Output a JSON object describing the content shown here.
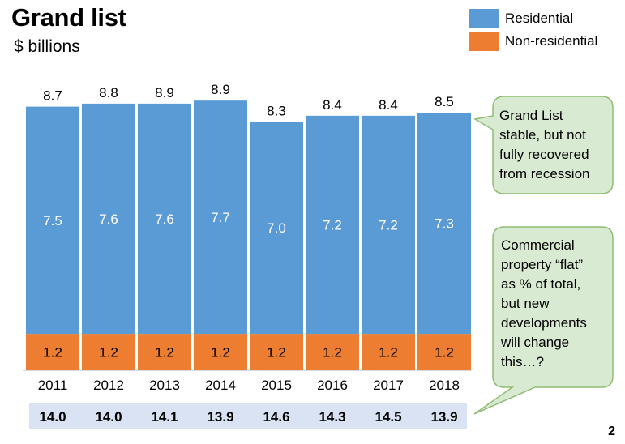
{
  "title": "Grand list",
  "subtitle": "$ billions",
  "page_number": "2",
  "colors": {
    "residential": "#5b9bd5",
    "non_residential": "#ed7d31",
    "callout_fill": "#d9ead3",
    "callout_border": "#8fbc72",
    "total_band": "#dae3f3"
  },
  "legend": [
    {
      "label": "Residential",
      "color": "#5b9bd5"
    },
    {
      "label": "Non-residential",
      "color": "#ed7d31"
    }
  ],
  "callouts": [
    {
      "lines": [
        "Grand List",
        "stable, but not",
        "fully recovered",
        "from recession"
      ]
    },
    {
      "lines": [
        "Commercial",
        "property “flat”",
        "as % of total,",
        "but new",
        "developments",
        "will change",
        "this…?"
      ]
    }
  ],
  "chart_data": {
    "type": "bar",
    "stacked": true,
    "categories": [
      "2011",
      "2012",
      "2013",
      "2014",
      "2015",
      "2016",
      "2017",
      "2018"
    ],
    "series": [
      {
        "name": "Non-residential",
        "values": [
          1.2,
          1.2,
          1.2,
          1.2,
          1.2,
          1.2,
          1.2,
          1.2
        ],
        "labels": [
          "1.2",
          "1.2",
          "1.2",
          "1.2",
          "1.2",
          "1.2",
          "1.2",
          "1.2"
        ]
      },
      {
        "name": "Residential",
        "values": [
          7.5,
          7.6,
          7.6,
          7.7,
          7.0,
          7.2,
          7.2,
          7.3
        ],
        "labels": [
          "7.5",
          "7.6",
          "7.6",
          "7.7",
          "7.0",
          "7.2",
          "7.2",
          "7.3"
        ]
      }
    ],
    "totals": [
      "8.7",
      "8.8",
      "8.9",
      "8.9",
      "8.3",
      "8.4",
      "8.4",
      "8.5"
    ],
    "total_values": [
      8.7,
      8.8,
      8.9,
      8.9,
      8.3,
      8.4,
      8.4,
      8.5
    ],
    "bottom_row": [
      "14.0",
      "14.0",
      "14.1",
      "13.9",
      "14.6",
      "14.3",
      "14.5",
      "13.9"
    ],
    "grid": false,
    "legend_position": "top-right"
  }
}
